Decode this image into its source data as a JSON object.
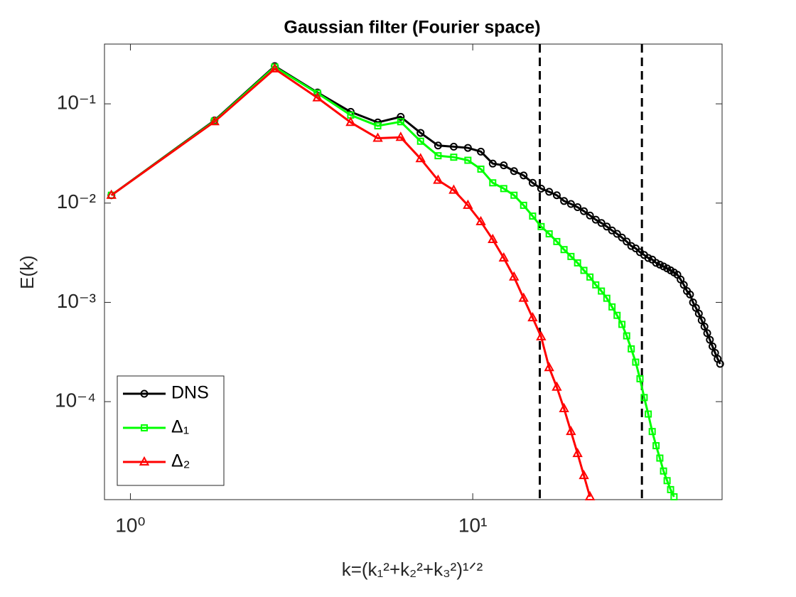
{
  "chart_data": {
    "type": "line",
    "title": "Gaussian filter (Fourier space)",
    "xlabel": "k=(k₁²+k₂²+k₃²)¹ᐟ²",
    "ylabel": "E(k)",
    "xscale": "log",
    "yscale": "log",
    "xlim": [
      0.84,
      53.5
    ],
    "ylim": [
      1.03e-05,
      0.4
    ],
    "xticks": [
      {
        "value": 1,
        "label": "10⁰"
      },
      {
        "value": 10,
        "label": "10¹"
      }
    ],
    "yticks": [
      {
        "value": 0.0001,
        "label": "10⁻⁴"
      },
      {
        "value": 0.001,
        "label": "10⁻³"
      },
      {
        "value": 0.01,
        "label": "10⁻²"
      },
      {
        "value": 0.1,
        "label": "10⁻¹"
      }
    ],
    "legend": "lower left",
    "vlines": [
      15.7,
      31.2
    ],
    "vline_color": "#000000",
    "x": [
      0.88,
      1.76,
      2.64,
      3.52,
      4.4,
      5.28,
      6.16,
      7.04,
      7.92,
      8.8,
      9.68,
      10.56,
      11.44,
      12.32,
      13.2,
      14.08,
      14.96,
      15.84,
      16.72,
      17.6,
      18.48,
      19.36,
      20.24,
      21.12,
      22,
      22.88,
      23.76,
      24.64,
      25.52,
      26.4,
      27.28,
      28.16,
      29.04,
      29.92,
      30.8,
      31.68,
      32.56,
      33.44,
      34.32,
      35.2,
      36.08,
      36.96,
      37.84,
      38.72,
      39.6,
      40.48,
      41.36,
      42.24,
      43.12,
      44,
      44.88,
      45.76,
      46.64,
      47.52,
      48.4,
      49.28,
      50.16,
      51.04,
      51.92,
      52.8
    ],
    "series": [
      {
        "name": "DNS",
        "color": "#000000",
        "marker": "circle",
        "values": [
          0.012,
          0.068,
          0.24,
          0.13,
          0.083,
          0.065,
          0.074,
          0.051,
          0.038,
          0.037,
          0.036,
          0.033,
          0.025,
          0.024,
          0.021,
          0.019,
          0.016,
          0.014,
          0.013,
          0.012,
          0.0105,
          0.0098,
          0.0091,
          0.0083,
          0.0075,
          0.0068,
          0.0063,
          0.0058,
          0.0053,
          0.0049,
          0.0045,
          0.0041,
          0.0037,
          0.0035,
          0.0032,
          0.003,
          0.0028,
          0.0027,
          0.0025,
          0.0024,
          0.0023,
          0.0022,
          0.0021,
          0.002,
          0.0019,
          0.0017,
          0.0015,
          0.0013,
          0.0012,
          0.001,
          0.00088,
          0.00077,
          0.00066,
          0.00057,
          0.00049,
          0.00042,
          0.00036,
          0.00031,
          0.00027,
          0.00024
        ]
      },
      {
        "name": "Δ₁",
        "color": "#00ff00",
        "marker": "square",
        "values": [
          0.012,
          0.067,
          0.235,
          0.128,
          0.077,
          0.06,
          0.066,
          0.042,
          0.03,
          0.029,
          0.027,
          0.022,
          0.016,
          0.014,
          0.012,
          0.0095,
          0.0074,
          0.0058,
          0.0049,
          0.0041,
          0.0034,
          0.0029,
          0.0025,
          0.0021,
          0.0018,
          0.0015,
          0.0013,
          0.0011,
          0.0009,
          0.00074,
          0.0006,
          0.00046,
          0.00034,
          0.00025,
          0.00017,
          0.00011,
          7.5e-05,
          5e-05,
          3.6e-05,
          2.7e-05,
          2e-05,
          1.6e-05,
          1.3e-05,
          1.1e-05,
          null,
          null,
          null,
          null,
          null,
          null,
          null,
          null,
          null,
          null,
          null,
          null,
          null,
          null,
          null,
          null
        ]
      },
      {
        "name": "Δ₂",
        "color": "#ff0000",
        "marker": "triangle",
        "values": [
          0.012,
          0.066,
          0.225,
          0.115,
          0.065,
          0.045,
          0.046,
          0.028,
          0.017,
          0.0135,
          0.0095,
          0.0065,
          0.0043,
          0.0028,
          0.0018,
          0.0011,
          0.0007,
          0.00045,
          0.00022,
          0.00014,
          8.5e-05,
          5e-05,
          3e-05,
          1.8e-05,
          1.1e-05,
          null,
          null,
          null,
          null,
          null,
          null,
          null,
          null,
          null,
          null,
          null,
          null,
          null,
          null,
          null,
          null,
          null,
          null,
          null,
          null,
          null,
          null,
          null,
          null,
          null,
          null,
          null,
          null,
          null,
          null,
          null,
          null,
          null,
          null,
          null
        ]
      }
    ]
  }
}
